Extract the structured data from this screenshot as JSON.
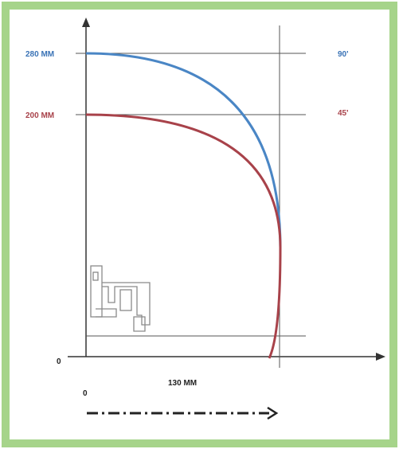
{
  "labels": {
    "blue_radius": "280 MM",
    "red_radius": "200 MM",
    "blue_angle": "90'",
    "red_angle": "45'",
    "origin_y": "0",
    "origin_x": "0",
    "x_measure": "130 MM"
  },
  "colors": {
    "frame": "#a6d48a",
    "blue_curve": "#4a86c5",
    "red_curve": "#a8424a",
    "blue_text": "#3a73b6",
    "red_text": "#a8424a",
    "axis": "#333333",
    "grid": "#555555",
    "profile": "#8a8a8a"
  },
  "icons": {
    "profile": "window-frame-profile-icon",
    "motion_arrow": "dash-dot-arrow-icon"
  }
}
